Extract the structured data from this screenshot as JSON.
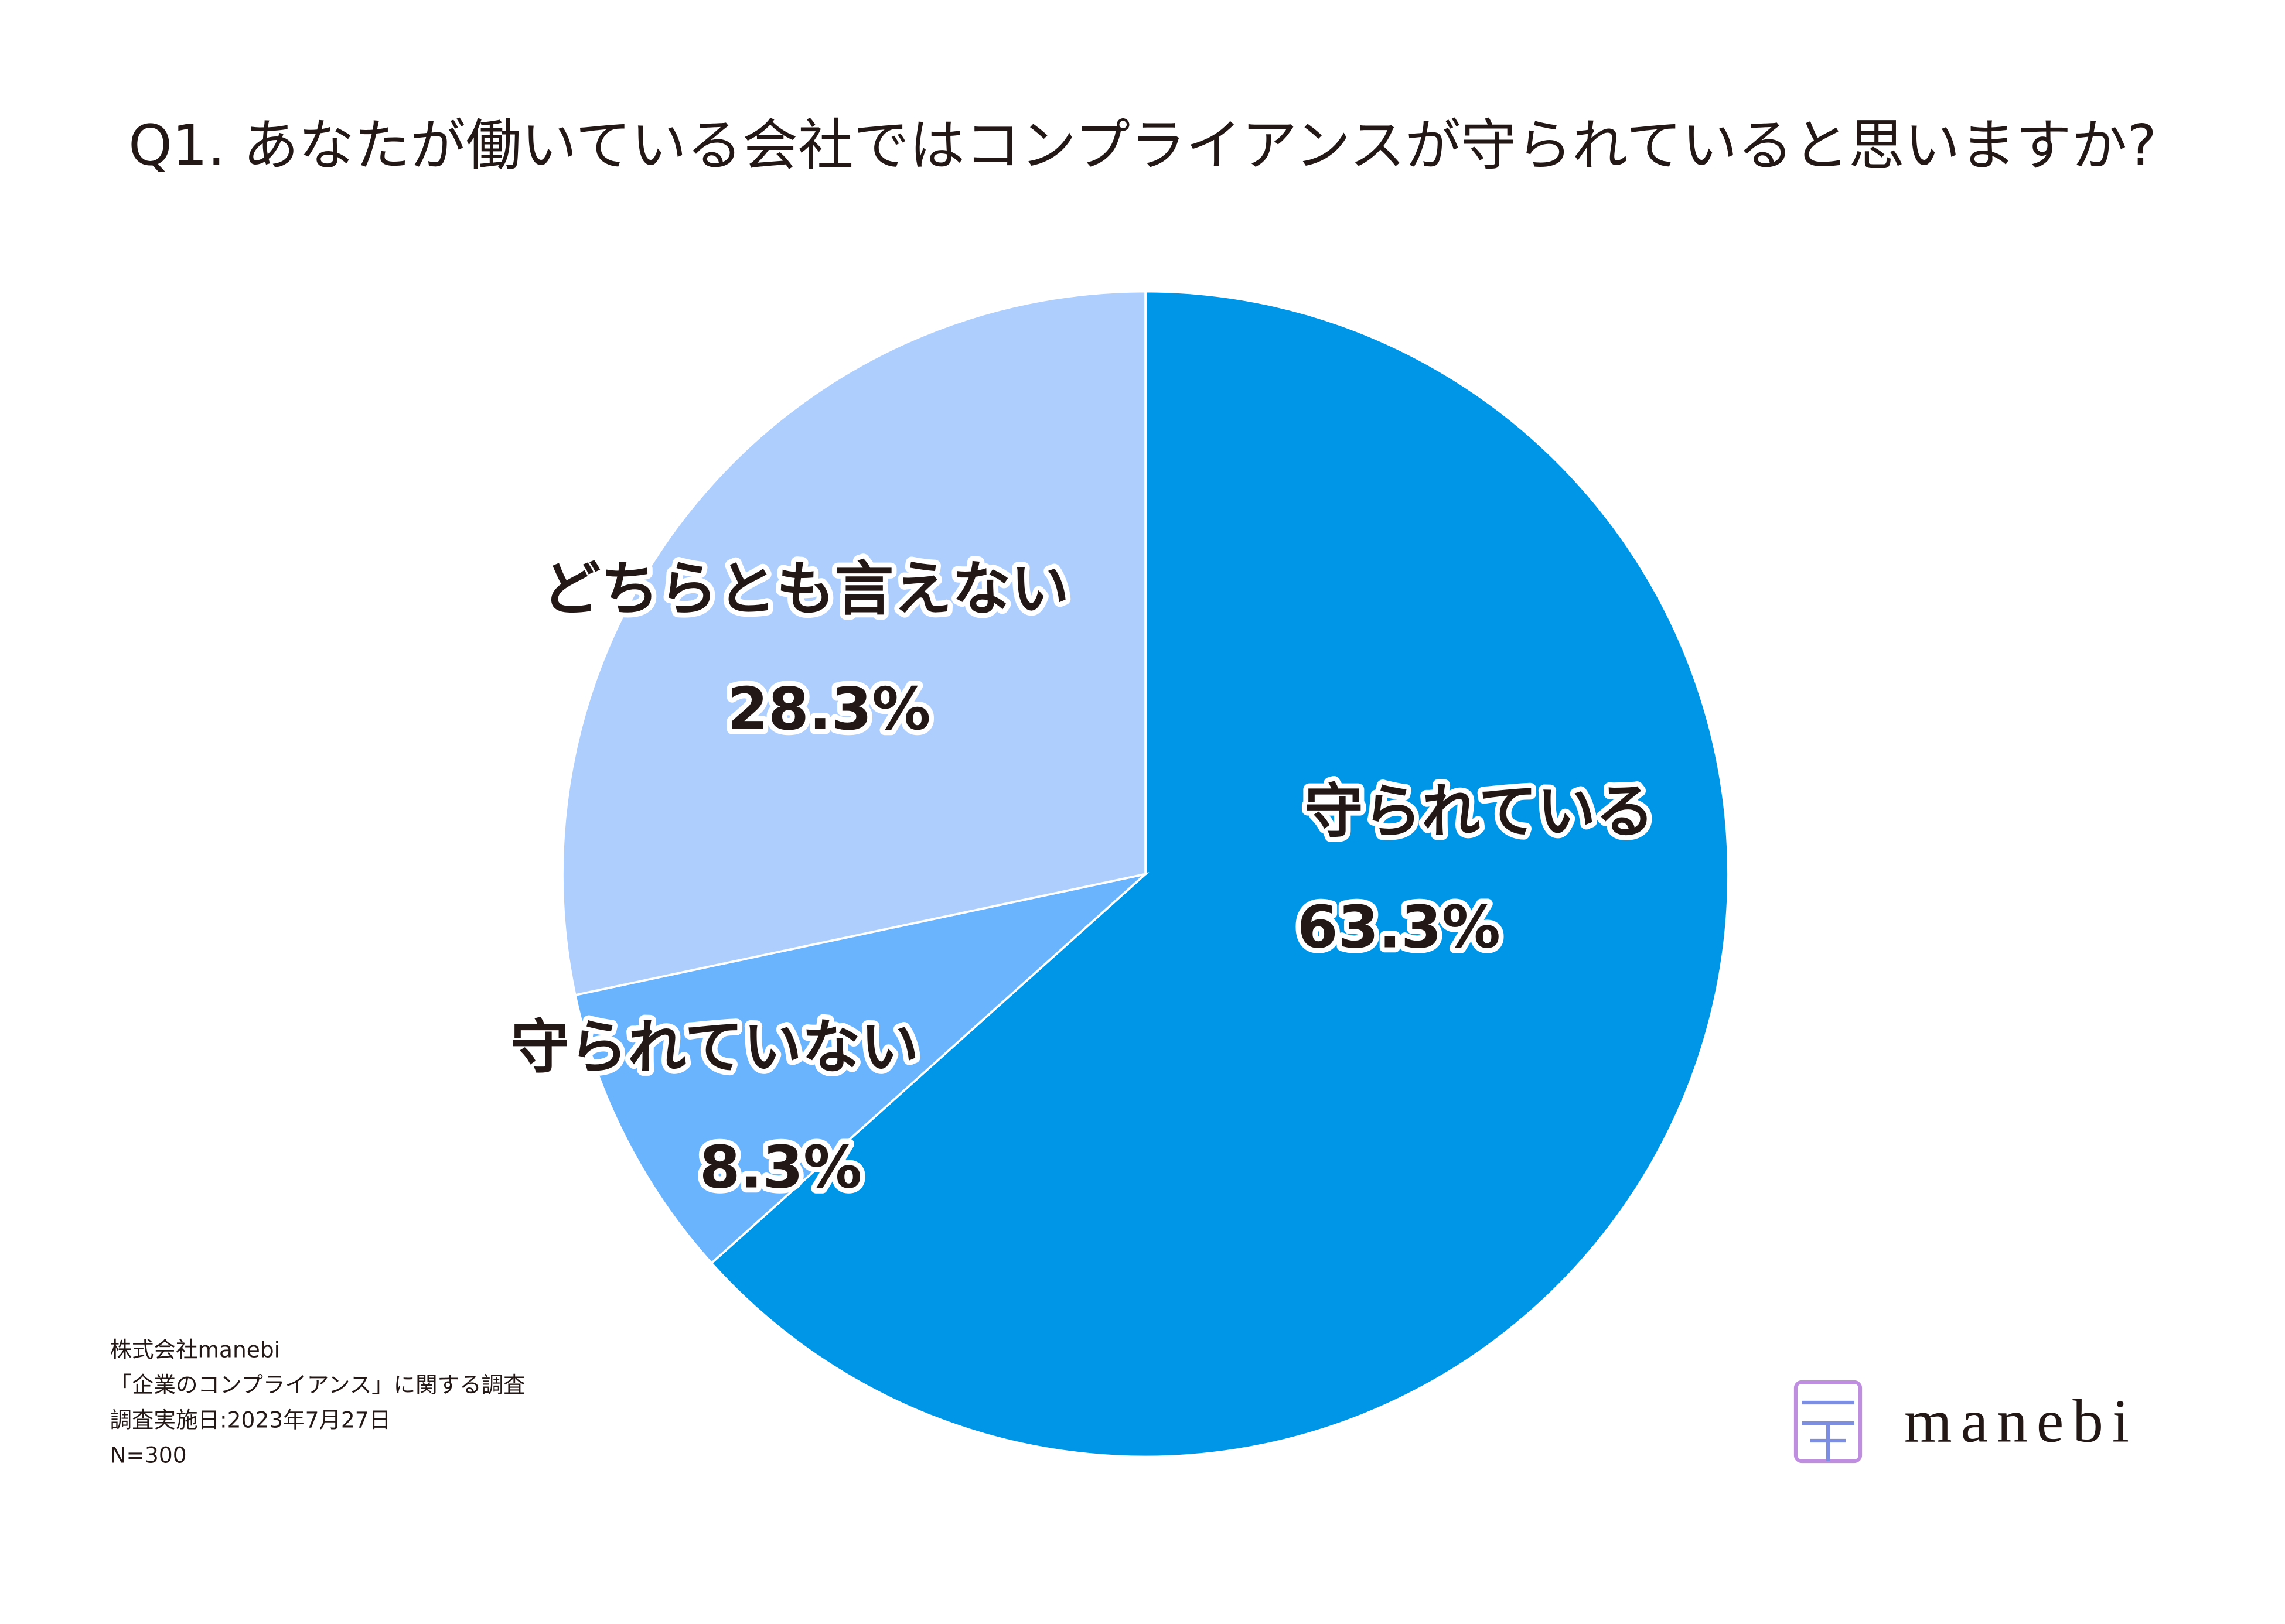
{
  "chart_data": {
    "type": "pie",
    "title": "Q1. あなたが働いている会社ではコンプライアンスが守られていると思いますか?",
    "categories": [
      "守られている",
      "守られていない",
      "どちらとも言えない"
    ],
    "values": [
      63.3,
      8.3,
      28.3
    ],
    "value_labels": [
      "63.3%",
      "8.3%",
      "28.3%"
    ],
    "colors": [
      "#0096e8",
      "#6ab3fd",
      "#aecffd"
    ],
    "notes": [
      "株式会社manebi",
      "「企業のコンプライアンス」に関する調査",
      "調査実施日:2023年7月27日",
      "N=300"
    ],
    "logo": "manebi"
  }
}
